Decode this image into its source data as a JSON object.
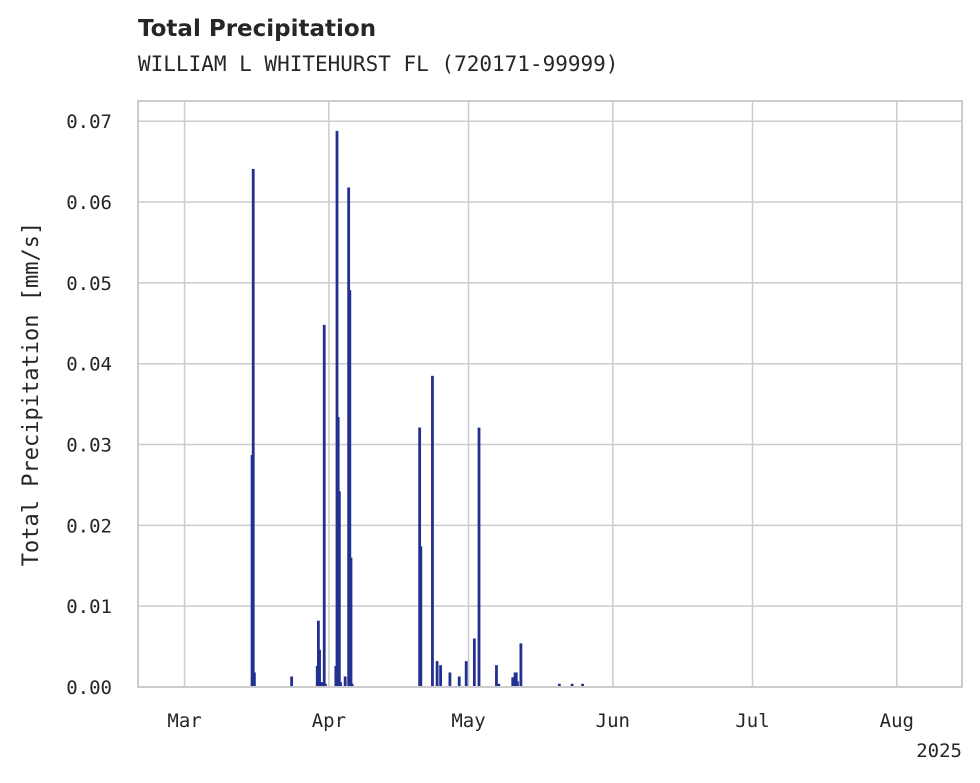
{
  "header": {
    "title": "Total Precipitation",
    "subtitle": "WILLIAM L WHITEHURST FL (720171-99999)"
  },
  "chart_data": {
    "type": "bar",
    "ylabel": "Total Precipitation [mm/s]",
    "xlabel": "",
    "xlim": [
      "2025-02-19",
      "2025-08-15"
    ],
    "ylim": [
      0,
      0.0725
    ],
    "grid": true,
    "x_ticks": [
      {
        "date": "2025-03-01",
        "label": "Mar"
      },
      {
        "date": "2025-04-01",
        "label": "Apr"
      },
      {
        "date": "2025-05-01",
        "label": "May"
      },
      {
        "date": "2025-06-01",
        "label": "Jun"
      },
      {
        "date": "2025-07-01",
        "label": "Jul"
      },
      {
        "date": "2025-08-01",
        "label": "Aug"
      }
    ],
    "x_offset_label": "2025",
    "y_ticks": [
      {
        "value": 0.0,
        "label": "0.00"
      },
      {
        "value": 0.01,
        "label": "0.01"
      },
      {
        "value": 0.02,
        "label": "0.02"
      },
      {
        "value": 0.03,
        "label": "0.03"
      },
      {
        "value": 0.04,
        "label": "0.04"
      },
      {
        "value": 0.05,
        "label": "0.05"
      },
      {
        "value": 0.06,
        "label": "0.06"
      },
      {
        "value": 0.07,
        "label": "0.07"
      }
    ],
    "bar_color": "#23308f",
    "series": [
      {
        "x": [
          "2025-03-15T12:00",
          "2025-03-15T18:00",
          "2025-03-16T00:00",
          "2025-03-24T00:00",
          "2025-03-29T12:00",
          "2025-03-29T18:00",
          "2025-03-30T00:00",
          "2025-03-30T12:00",
          "2025-03-31T00:00",
          "2025-03-31T06:00",
          "2025-04-02T12:00",
          "2025-04-02T18:00",
          "2025-04-03T00:00",
          "2025-04-03T06:00",
          "2025-04-03T12:00",
          "2025-04-04T12:00",
          "2025-04-05T06:00",
          "2025-04-05T12:00",
          "2025-04-05T18:00",
          "2025-04-06T00:00",
          "2025-04-20T12:00",
          "2025-04-20T18:00",
          "2025-04-23T06:00",
          "2025-04-24T06:00",
          "2025-04-25T00:00",
          "2025-04-27T00:00",
          "2025-04-29T00:00",
          "2025-04-30T12:00",
          "2025-05-02T06:00",
          "2025-05-03T06:00",
          "2025-05-07T00:00",
          "2025-05-07T12:00",
          "2025-05-10T12:00",
          "2025-05-11T00:00",
          "2025-05-11T06:00",
          "2025-05-11T12:00",
          "2025-05-12T06:00",
          "2025-05-20T12:00",
          "2025-05-23T06:00",
          "2025-05-25T12:00"
        ],
        "values": [
          0.0287,
          0.0641,
          0.0018,
          0.0013,
          0.0026,
          0.0082,
          0.0046,
          0.0006,
          0.0448,
          0.0004,
          0.0026,
          0.0688,
          0.0334,
          0.0242,
          0.0006,
          0.0013,
          0.0618,
          0.0491,
          0.016,
          0.0004,
          0.0321,
          0.0174,
          0.0385,
          0.0032,
          0.0027,
          0.0018,
          0.0013,
          0.0032,
          0.006,
          0.0321,
          0.0027,
          0.0004,
          0.0012,
          0.0018,
          0.0018,
          0.0007,
          0.0054,
          0.0004,
          0.0004,
          0.0004
        ]
      }
    ]
  }
}
